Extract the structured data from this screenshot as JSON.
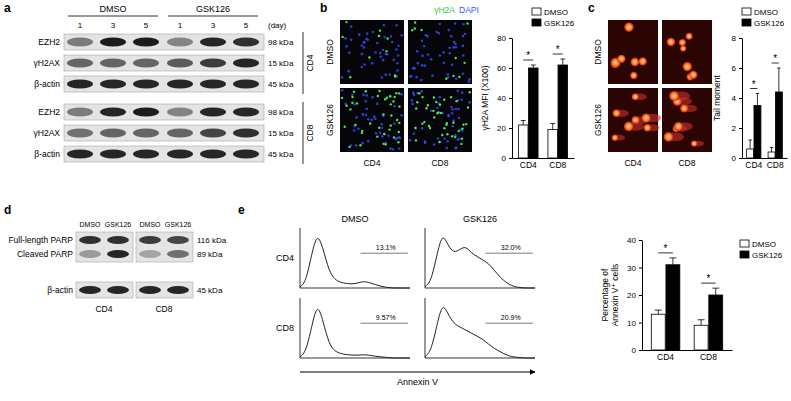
{
  "chart_data": [
    {
      "type": "bar",
      "categories": [
        "CD4",
        "CD8"
      ],
      "ylabel": "γH2A MFI (X100)",
      "ylim": [
        0,
        80
      ],
      "yticks": [
        0,
        20,
        40,
        60,
        80
      ],
      "legend": "top-right",
      "series": [
        {
          "name": "DMSO",
          "color": "#ffffff",
          "values": [
            22,
            19
          ],
          "errors": [
            3,
            4
          ]
        },
        {
          "name": "GSK126",
          "color": "#000000",
          "values": [
            60,
            62
          ],
          "errors": [
            2,
            4
          ]
        }
      ],
      "annotations": [
        "*",
        "*"
      ]
    },
    {
      "type": "bar",
      "categories": [
        "CD4",
        "CD8"
      ],
      "ylabel": "Tail moment",
      "ylim": [
        0,
        8
      ],
      "yticks": [
        0,
        2,
        4,
        6,
        8
      ],
      "legend": "top-right",
      "series": [
        {
          "name": "DMSO",
          "color": "#ffffff",
          "values": [
            0.6,
            0.4
          ],
          "errors": [
            0.6,
            0.3
          ]
        },
        {
          "name": "GSK126",
          "color": "#000000",
          "values": [
            3.5,
            4.4
          ],
          "errors": [
            0.8,
            1.6
          ]
        }
      ],
      "annotations": [
        "*",
        "*"
      ]
    },
    {
      "type": "bar",
      "categories": [
        "CD4",
        "CD8"
      ],
      "ylabel": [
        "Percentage of",
        "Annexin V⁺ cells"
      ],
      "ylim": [
        0,
        40
      ],
      "yticks": [
        0,
        10,
        20,
        30,
        40
      ],
      "legend": "right",
      "series": [
        {
          "name": "DMSO",
          "color": "#ffffff",
          "values": [
            13,
            9
          ],
          "errors": [
            1.5,
            2
          ]
        },
        {
          "name": "GSK126",
          "color": "#000000",
          "values": [
            31,
            20
          ],
          "errors": [
            2.5,
            2.5
          ]
        }
      ],
      "annotations": [
        "*",
        "*"
      ]
    }
  ],
  "figure": {
    "panel_labels": [
      "a",
      "b",
      "c",
      "d",
      "e"
    ],
    "blot_a": {
      "groups": [
        "DMSO",
        "GSK126"
      ],
      "unit_label": "(day)",
      "days": [
        "1",
        "3",
        "5",
        "1",
        "3",
        "5"
      ],
      "sections": [
        {
          "name": "CD4",
          "rows": [
            {
              "label": "EZH2",
              "size": "98 kDa",
              "intensity": [
                0.5,
                0.95,
                0.95,
                0.45,
                0.9,
                0.85
              ]
            },
            {
              "label": "γH2AX",
              "size": "15 kDa",
              "intensity": [
                0.6,
                0.6,
                0.6,
                0.65,
                0.8,
                0.9
              ]
            },
            {
              "label": "β-actin",
              "size": "45 kDa",
              "intensity": [
                0.9,
                0.9,
                0.9,
                0.9,
                0.9,
                0.9
              ]
            }
          ]
        },
        {
          "name": "CD8",
          "rows": [
            {
              "label": "EZH2",
              "size": "98 kDa",
              "intensity": [
                0.5,
                0.9,
                0.95,
                0.45,
                0.9,
                0.9
              ]
            },
            {
              "label": "γH2AX",
              "size": "15 kDa",
              "intensity": [
                0.55,
                0.6,
                0.6,
                0.6,
                0.75,
                0.85
              ]
            },
            {
              "label": "β-actin",
              "size": "45 kDa",
              "intensity": [
                0.9,
                0.9,
                0.9,
                0.9,
                0.9,
                0.9
              ]
            }
          ]
        }
      ]
    },
    "imaging_b": {
      "channels": [
        "γH2A",
        "DAPI"
      ],
      "rows": [
        "DMSO",
        "GSK126"
      ],
      "columns": [
        "CD4",
        "CD8"
      ]
    },
    "comet_c": {
      "rows": [
        "DMSO",
        "GSK126"
      ],
      "columns": [
        "CD4",
        "CD8"
      ]
    },
    "blot_d": {
      "lanes": [
        "DMSO",
        "GSK126",
        "DMSO",
        "GSK126"
      ],
      "groups": [
        "CD4",
        "CD8"
      ],
      "rows": [
        {
          "label": "Full-length PARP",
          "size": "116 kDa",
          "intensity": [
            0.85,
            0.85,
            0.8,
            0.75
          ]
        },
        {
          "label": "Cleaved PARP",
          "size": "89 kDa",
          "intensity": [
            0.35,
            0.9,
            0.3,
            0.55
          ]
        },
        {
          "label": "β-actin",
          "size": "45 kDa",
          "intensity": [
            0.9,
            0.9,
            0.9,
            0.9
          ]
        }
      ]
    },
    "flow_e": {
      "columns": [
        "DMSO",
        "GSK126"
      ],
      "rows": [
        "CD4",
        "CD8"
      ],
      "axis_label": "Annexin V",
      "gates": [
        [
          "13.1%",
          "32.0%"
        ],
        [
          "9.57%",
          "20.9%"
        ]
      ],
      "curves": [
        [
          [
            2,
            10,
            60,
            100,
            70,
            30,
            15,
            10,
            8,
            7,
            9,
            12,
            10,
            6,
            3,
            1,
            0,
            0,
            0,
            0
          ],
          [
            2,
            8,
            45,
            80,
            60,
            50,
            55,
            60,
            50,
            45,
            40,
            35,
            25,
            15,
            8,
            3,
            1,
            0,
            0,
            0
          ]
        ],
        [
          [
            2,
            10,
            55,
            100,
            65,
            25,
            12,
            8,
            6,
            5,
            5,
            6,
            5,
            3,
            2,
            1,
            0,
            0,
            0,
            0
          ],
          [
            2,
            10,
            50,
            90,
            70,
            55,
            50,
            45,
            40,
            35,
            30,
            22,
            15,
            10,
            5,
            2,
            1,
            0,
            0,
            0
          ]
        ]
      ]
    }
  }
}
